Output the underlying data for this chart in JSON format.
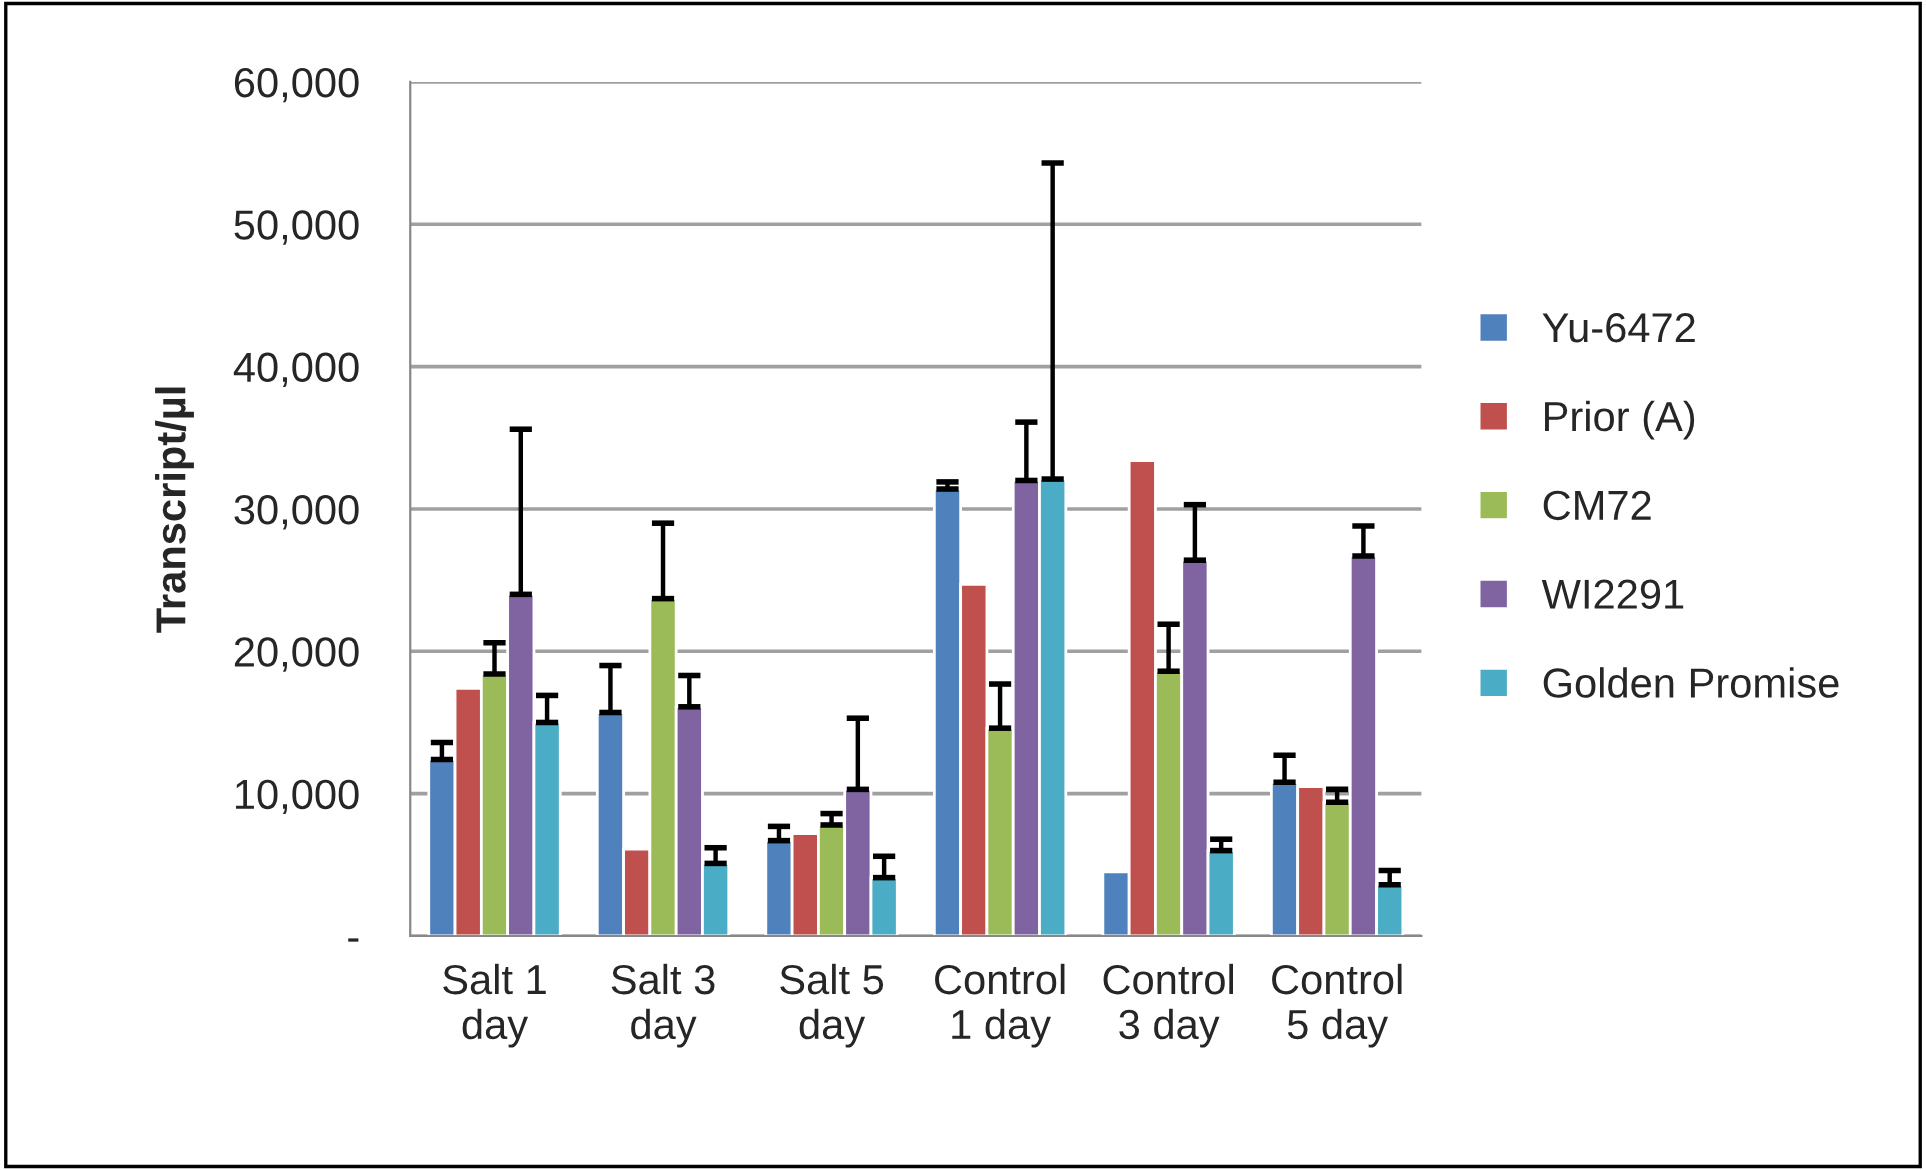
{
  "chart_data": {
    "type": "bar",
    "ylabel": "Transcript/µl",
    "categories": [
      "Salt 1\nday",
      "Salt 3\nday",
      "Salt 5\nday",
      "Control\n1 day",
      "Control\n3 day",
      "Control\n5 day"
    ],
    "series": [
      {
        "name": "Yu-6472",
        "color": "#4f81bd",
        "values": [
          12400,
          15700,
          6700,
          31400,
          4500,
          10800
        ],
        "errors": [
          [
            12400,
            13600
          ],
          [
            15700,
            19000
          ],
          [
            6700,
            7700
          ],
          [
            31400,
            31900
          ],
          null,
          [
            10800,
            12700
          ]
        ]
      },
      {
        "name": "Prior (A)",
        "color": "#c0504d",
        "values": [
          17400,
          6100,
          7200,
          24700,
          33400,
          10500
        ],
        "errors": [
          null,
          null,
          null,
          null,
          null,
          null
        ]
      },
      {
        "name": "CM72",
        "color": "#9bbb59",
        "values": [
          18400,
          23700,
          7800,
          14600,
          18600,
          9400
        ],
        "errors": [
          [
            18400,
            20600
          ],
          [
            23700,
            29000
          ],
          [
            7800,
            8600
          ],
          [
            14600,
            17700
          ],
          [
            18600,
            21900
          ],
          [
            9400,
            10300
          ]
        ]
      },
      {
        "name": "WI2291",
        "color": "#8064a2",
        "values": [
          24000,
          16100,
          10300,
          32000,
          26400,
          26700
        ],
        "errors": [
          [
            24000,
            35600
          ],
          [
            16100,
            18300
          ],
          [
            10300,
            15300
          ],
          [
            32000,
            36100
          ],
          [
            26400,
            30300
          ],
          [
            26700,
            28800
          ]
        ]
      },
      {
        "name": "Golden Promise",
        "color": "#4bacc6",
        "values": [
          15000,
          5100,
          4100,
          32100,
          6000,
          3600
        ],
        "errors": [
          [
            15000,
            16900
          ],
          [
            5100,
            6200
          ],
          [
            4100,
            5600
          ],
          [
            32100,
            54300
          ],
          [
            6000,
            6800
          ],
          [
            3600,
            4600
          ]
        ]
      }
    ],
    "ylim": [
      0,
      60000
    ],
    "yticks": [
      {
        "value": 0,
        "label": "-"
      },
      {
        "value": 10000,
        "label": "10,000"
      },
      {
        "value": 20000,
        "label": "20,000"
      },
      {
        "value": 30000,
        "label": "30,000"
      },
      {
        "value": 40000,
        "label": "40,000"
      },
      {
        "value": 50000,
        "label": "50,000"
      },
      {
        "value": 60000,
        "label": "60,000"
      }
    ],
    "grid": "y",
    "legend": "right"
  }
}
